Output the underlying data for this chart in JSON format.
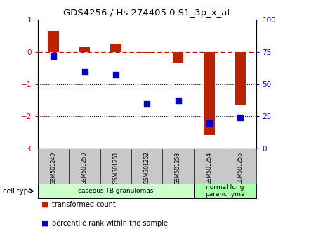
{
  "title": "GDS4256 / Hs.274405.0.S1_3p_x_at",
  "samples": [
    "GSM501249",
    "GSM501250",
    "GSM501251",
    "GSM501252",
    "GSM501253",
    "GSM501254",
    "GSM501255"
  ],
  "transformed_count": [
    0.65,
    0.15,
    0.25,
    -0.02,
    -0.35,
    -2.55,
    -1.65
  ],
  "percentile_rank": [
    72,
    60,
    57,
    35,
    37,
    20,
    24
  ],
  "ylim_left": [
    -3,
    1
  ],
  "ylim_right": [
    0,
    100
  ],
  "yticks_left": [
    1,
    0,
    -1,
    -2,
    -3
  ],
  "yticks_right": [
    100,
    75,
    50,
    25,
    0
  ],
  "hline_y": 0,
  "dotted_lines": [
    -1,
    -2
  ],
  "bar_color": "#bb2200",
  "dot_color": "#0000cc",
  "cell_types": [
    {
      "label": "caseous TB granulomas",
      "indices": [
        0,
        1,
        2,
        3,
        4
      ],
      "color": "#ccffcc"
    },
    {
      "label": "normal lung\nparenchyma",
      "indices": [
        5,
        6
      ],
      "color": "#aaffaa"
    }
  ],
  "cell_type_label": "cell type",
  "legend_bar_label": "transformed count",
  "legend_dot_label": "percentile rank within the sample",
  "bar_width": 0.35,
  "plot_bg_color": "#ffffff",
  "tick_area_color": "#c8c8c8",
  "right_tick_color": "#0000cc",
  "left_tick_color": "#cc0000"
}
